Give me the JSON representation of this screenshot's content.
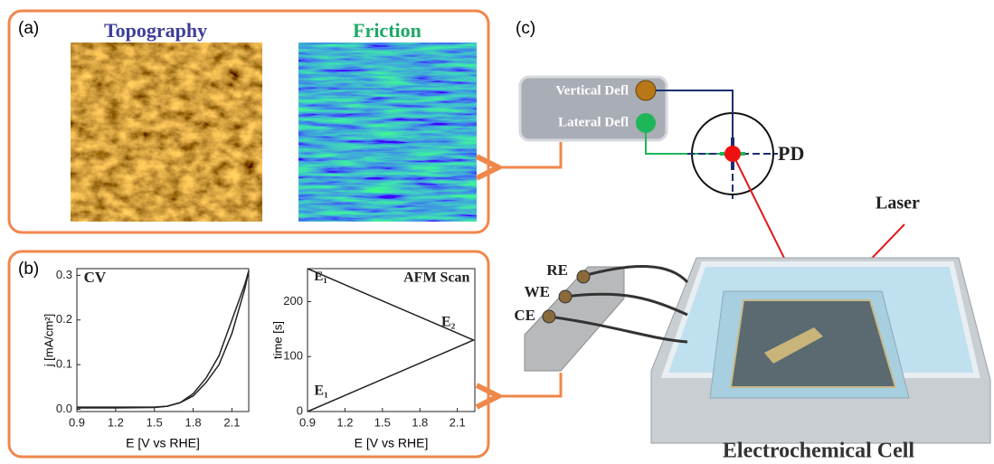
{
  "panels": {
    "a": "(a)",
    "b": "(b)",
    "c": "(c)"
  },
  "images": {
    "topography": "Topography",
    "friction": "Friction"
  },
  "detector": {
    "vertical": "Vertical Defl",
    "lateral": "Lateral Defl",
    "pd": "PD",
    "laser": "Laser"
  },
  "cell": {
    "title": "Electrochemical Cell",
    "electrodes": [
      "RE",
      "WE",
      "CE"
    ]
  },
  "chart_data": [
    {
      "type": "line",
      "annotations": [
        "CV"
      ],
      "x_label": "E [V vs RHE]",
      "y_label": "j [mA/cm²]",
      "xlim": [
        0.9,
        2.23
      ],
      "ylim": [
        -0.005,
        0.315
      ],
      "xticks": [
        0.9,
        1.2,
        1.5,
        1.8,
        2.1
      ],
      "yticks": [
        {
          "value": 0,
          "label": "0.0"
        },
        0.1,
        0.2,
        0.3
      ],
      "series": [
        {
          "color": "#222222",
          "x": [
            0.9,
            1.2,
            1.5,
            1.6,
            1.7,
            1.8,
            1.9,
            2.0,
            2.1,
            2.2,
            2.23
          ],
          "values": [
            0.005,
            0.005,
            0.005,
            0.007,
            0.015,
            0.03,
            0.06,
            0.1,
            0.17,
            0.27,
            0.31
          ]
        },
        {
          "color": "#222222",
          "x": [
            2.23,
            2.2,
            2.1,
            2.0,
            1.9,
            1.8,
            1.7,
            1.6,
            1.5,
            1.2,
            0.9
          ],
          "values": [
            0.31,
            0.28,
            0.2,
            0.12,
            0.07,
            0.035,
            0.015,
            0.007,
            0.004,
            0.003,
            0.003
          ]
        }
      ]
    },
    {
      "type": "line",
      "annotations": [
        "AFM Scan",
        "E₁",
        "E₂",
        "E₁"
      ],
      "x_label": "E [V vs RHE]",
      "y_label": "time [s]",
      "xlim": [
        0.9,
        2.24
      ],
      "ylim": [
        0,
        260
      ],
      "xticks": [
        0.9,
        1.2,
        1.5,
        1.8,
        2.1
      ],
      "yticks": [
        0,
        100,
        200
      ],
      "series": [
        {
          "color": "#222222",
          "x": [
            0.9,
            2.23,
            0.9
          ],
          "values": [
            0,
            130,
            260
          ]
        }
      ]
    }
  ]
}
